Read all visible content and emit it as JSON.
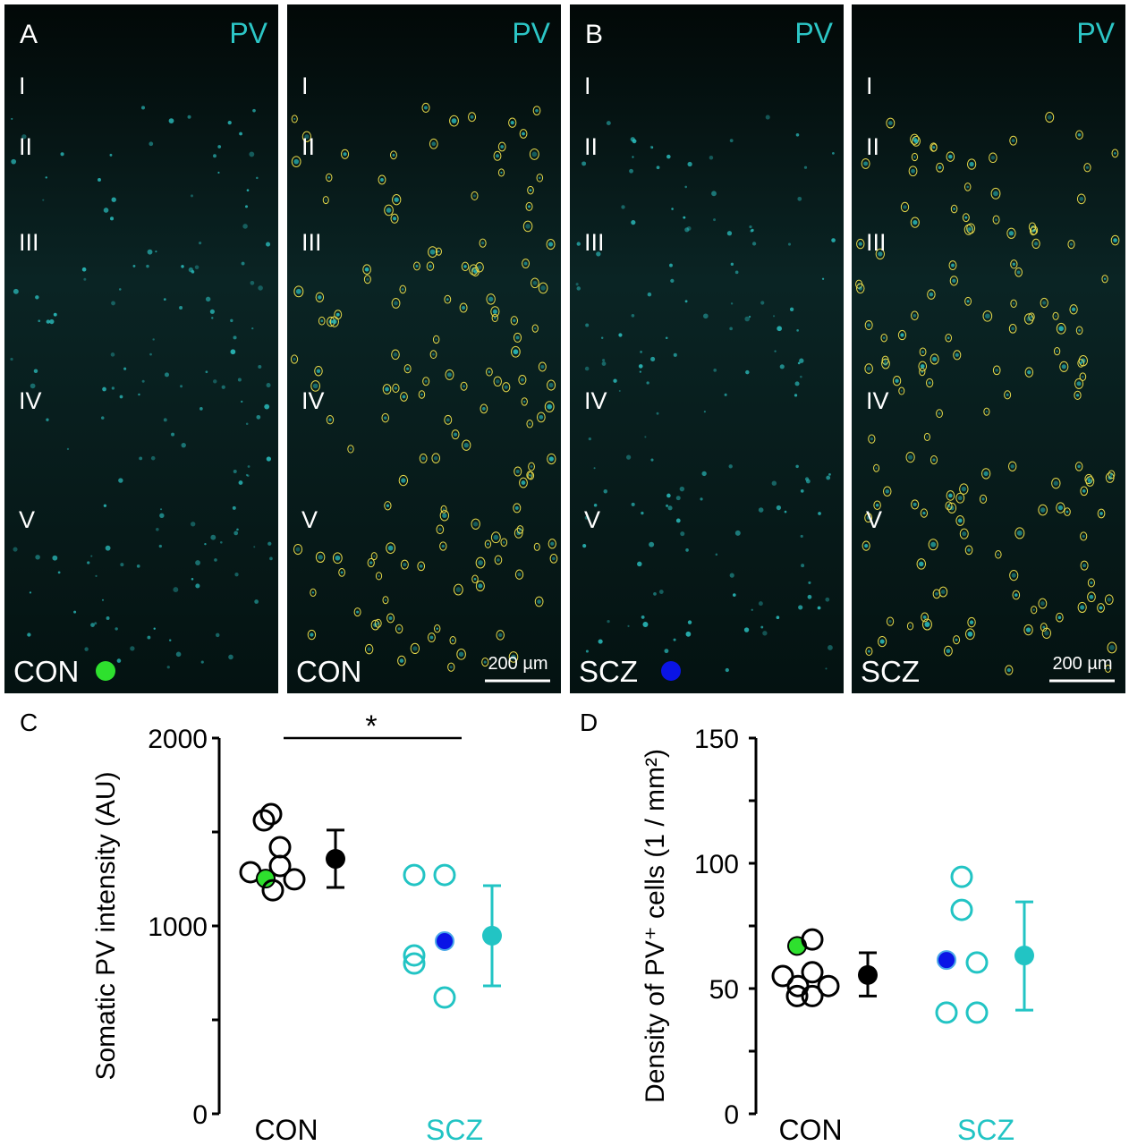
{
  "colors": {
    "pv": "#2cc6c6",
    "con_highlight": "#2ee02e",
    "scz_highlight": "#0a14e6",
    "scz": "#22c4c4",
    "outline": "#e4d84a"
  },
  "micrographs": [
    {
      "panel_letter": "A",
      "stain": "PV",
      "group": "CON",
      "highlight_dot": "green",
      "outlined": false,
      "scale_bar": ""
    },
    {
      "panel_letter": "",
      "stain": "PV",
      "group": "CON",
      "highlight_dot": "",
      "outlined": true,
      "scale_bar": "200 µm"
    },
    {
      "panel_letter": "B",
      "stain": "PV",
      "group": "SCZ",
      "highlight_dot": "blue",
      "outlined": false,
      "scale_bar": ""
    },
    {
      "panel_letter": "",
      "stain": "PV",
      "group": "SCZ",
      "highlight_dot": "",
      "outlined": true,
      "scale_bar": "200 µm"
    }
  ],
  "layers": [
    "I",
    "II",
    "III",
    "IV",
    "V"
  ],
  "chart_data": [
    {
      "panel_letter": "C",
      "type": "scatter",
      "ylabel": "Somatic PV intensity (AU)",
      "ylim": [
        0,
        2000
      ],
      "yticks": [
        "0",
        "1000",
        "2000"
      ],
      "categories": [
        "CON",
        "SCZ"
      ],
      "significance": {
        "label": "*",
        "between": [
          "CON",
          "SCZ"
        ]
      },
      "series": [
        {
          "name": "CON",
          "points": [
            1595,
            1562,
            1419,
            1319,
            1286,
            1252,
            1248,
            1190
          ],
          "highlight_index": 5,
          "mean": 1357,
          "err_low": 1205,
          "err_high": 1510
        },
        {
          "name": "SCZ",
          "points": [
            1271,
            1271,
            919,
            843,
            800,
            619
          ],
          "highlight_index": 2,
          "mean": 948,
          "err_low": 681,
          "err_high": 1214
        }
      ]
    },
    {
      "panel_letter": "D",
      "type": "scatter",
      "ylabel": "Density of PV⁺ cells (1 / mm²)",
      "ylim": [
        0,
        150
      ],
      "yticks": [
        "0",
        "50",
        "100",
        "150"
      ],
      "categories": [
        "CON",
        "SCZ"
      ],
      "series": [
        {
          "name": "CON",
          "points": [
            67,
            69.6,
            55,
            56.5,
            51,
            51,
            47,
            47
          ],
          "highlight_index": 0,
          "mean": 55.4,
          "err_low": 47,
          "err_high": 64.3
        },
        {
          "name": "SCZ",
          "points": [
            94.6,
            81.4,
            61.4,
            60.4,
            40.4,
            40.4
          ],
          "highlight_index": 2,
          "mean": 63.2,
          "err_low": 41.4,
          "err_high": 84.6
        }
      ]
    }
  ]
}
